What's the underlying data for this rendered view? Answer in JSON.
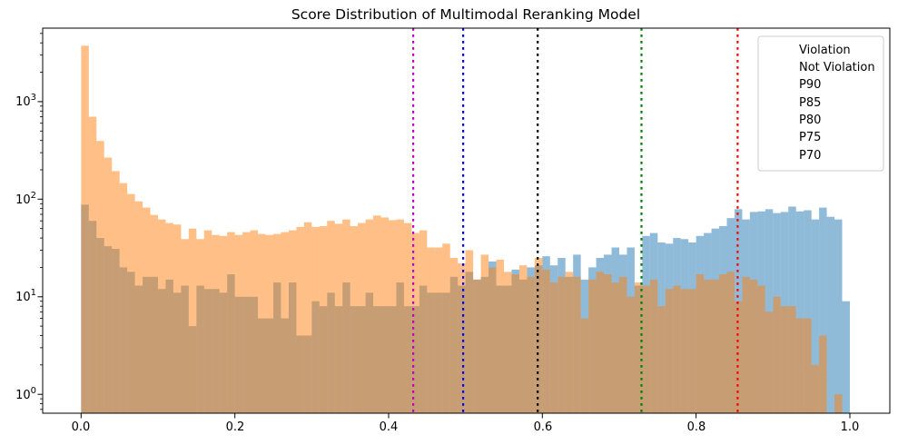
{
  "chart_data": {
    "type": "histogram",
    "title": "Score Distribution of Multimodal Reranking Model",
    "x_axis": {
      "tick_labels": [
        "0.0",
        "0.2",
        "0.4",
        "0.6",
        "0.8",
        "1.0"
      ],
      "tick_values": [
        0.0,
        0.2,
        0.4,
        0.6,
        0.8,
        1.0
      ],
      "range": [
        -0.05,
        1.052
      ]
    },
    "y_axis": {
      "scale": "log",
      "ticks": [
        {
          "base": "10",
          "exp": "0",
          "value": 1
        },
        {
          "base": "10",
          "exp": "1",
          "value": 10
        },
        {
          "base": "10",
          "exp": "2",
          "value": 100
        },
        {
          "base": "10",
          "exp": "3",
          "value": 1000
        }
      ],
      "range": [
        0.64,
        5666
      ]
    },
    "bins": {
      "start": 0.0,
      "width": 0.01,
      "count": 100
    },
    "series": [
      {
        "name": "Violation",
        "color": "#1f77b4",
        "alpha": 0.5,
        "values": [
          88,
          60,
          40,
          33,
          31,
          20,
          18,
          13,
          16,
          16,
          12,
          15,
          11,
          13,
          5,
          13,
          12,
          12,
          11,
          17,
          10,
          10,
          10,
          6,
          6,
          14,
          6,
          14,
          4,
          4,
          9,
          8,
          11,
          8,
          14,
          8,
          8,
          11,
          8,
          8,
          8,
          14,
          8,
          8,
          13,
          11,
          11,
          11,
          16,
          13,
          18,
          15,
          16,
          23,
          13,
          13,
          19,
          15,
          20,
          21,
          26,
          21,
          25,
          16,
          27,
          15,
          20,
          25,
          27,
          32,
          27,
          32,
          13,
          42,
          45,
          36,
          35,
          40,
          39,
          36,
          42,
          45,
          50,
          53,
          64,
          79,
          62,
          74,
          75,
          79,
          72,
          74,
          84,
          75,
          77,
          62,
          82,
          66,
          62,
          9
        ]
      },
      {
        "name": "Not Violation",
        "color": "#ff7f0e",
        "alpha": 0.5,
        "values": [
          3740,
          700,
          395,
          267,
          194,
          146,
          113,
          95,
          82,
          69,
          62,
          57,
          55,
          39,
          50,
          39,
          48,
          43,
          42,
          46,
          43,
          46,
          48,
          44,
          43,
          44,
          46,
          48,
          52,
          58,
          52,
          53,
          60,
          56,
          62,
          53,
          57,
          62,
          68,
          65,
          61,
          62,
          57,
          45,
          48,
          32,
          32,
          35,
          25,
          22,
          30,
          15,
          27,
          20,
          24,
          18,
          17,
          21,
          16,
          25,
          19,
          14,
          16,
          18,
          16,
          6,
          15,
          18,
          17,
          14,
          16,
          10,
          14,
          13,
          15,
          8,
          12,
          13,
          12,
          12,
          17,
          15,
          15,
          17,
          18,
          9,
          16,
          15,
          13,
          7,
          10,
          8,
          8,
          6,
          6,
          2,
          4,
          0,
          1,
          0
        ]
      }
    ],
    "percentile_lines": [
      {
        "label": "P90",
        "x": 0.854,
        "color": "#ff0000"
      },
      {
        "label": "P85",
        "x": 0.729,
        "color": "#008000"
      },
      {
        "label": "P80",
        "x": 0.594,
        "color": "#000000"
      },
      {
        "label": "P75",
        "x": 0.497,
        "color": "#0000ff"
      },
      {
        "label": "P70",
        "x": 0.432,
        "color": "#bf00bf"
      }
    ],
    "legend": {
      "position": "upper right",
      "entries": [
        {
          "label": "Violation",
          "swatch": "patch",
          "color": "#1f77b4",
          "alpha": 0.5
        },
        {
          "label": "Not Violation",
          "swatch": "patch",
          "color": "#ff7f0e",
          "alpha": 0.5
        },
        {
          "label": "P90",
          "swatch": "dotted-line",
          "color": "#ff0000"
        },
        {
          "label": "P85",
          "swatch": "dotted-line",
          "color": "#008000"
        },
        {
          "label": "P80",
          "swatch": "dotted-line",
          "color": "#000000"
        },
        {
          "label": "P75",
          "swatch": "dotted-line",
          "color": "#0000ff"
        },
        {
          "label": "P70",
          "swatch": "dotted-line",
          "color": "#bf00bf"
        }
      ]
    }
  }
}
